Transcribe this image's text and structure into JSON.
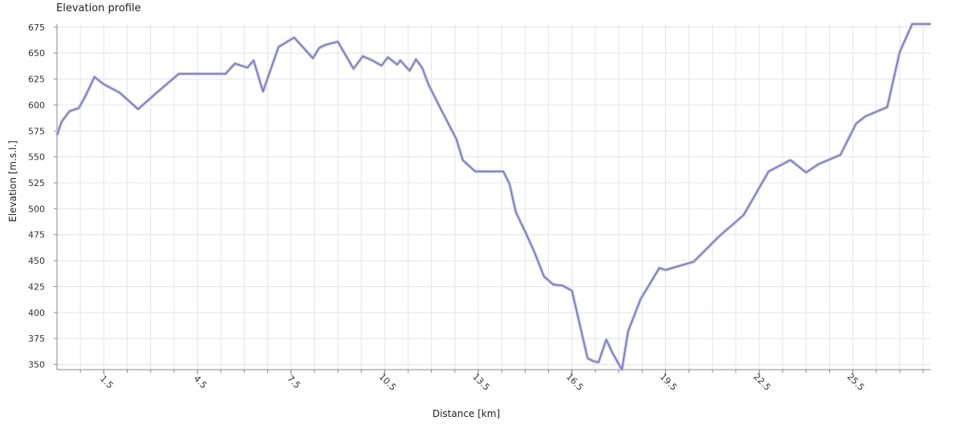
{
  "chart_data": {
    "type": "line",
    "title": "Elevation profile",
    "xlabel": "Distance [km]",
    "ylabel": "Elevation [m.s.l.]",
    "xlim": [
      0,
      28
    ],
    "ylim": [
      345,
      678
    ],
    "xticks": [
      1.5,
      4.5,
      7.5,
      10.5,
      13.5,
      16.5,
      19.5,
      22.5,
      25.5
    ],
    "yticks": [
      350,
      375,
      400,
      425,
      450,
      475,
      500,
      525,
      550,
      575,
      600,
      625,
      650,
      675
    ],
    "grid": true,
    "line_color": "#7b79b4",
    "series": [
      {
        "x": [
          0.0,
          0.15,
          0.4,
          0.7,
          0.9,
          1.2,
          1.5,
          2.0,
          2.6,
          3.2,
          3.9,
          4.2,
          4.6,
          5.4,
          5.7,
          6.1,
          6.3,
          6.6,
          7.1,
          7.6,
          7.9,
          8.2,
          8.4,
          8.6,
          9.0,
          9.5,
          9.8,
          10.1,
          10.4,
          10.6,
          10.9,
          11.0,
          11.3,
          11.5,
          11.7,
          11.9,
          12.3,
          12.8,
          13.0,
          13.4,
          14.3,
          14.5,
          14.7,
          15.0,
          15.3,
          15.6,
          15.9,
          16.2,
          16.5,
          16.7,
          17.0,
          17.2,
          17.35,
          17.6,
          17.8,
          18.1,
          18.3,
          18.7,
          19.3,
          19.5,
          20.4,
          21.2,
          22.0,
          22.8,
          23.5,
          24.0,
          24.4,
          25.1,
          25.6,
          25.9,
          26.6,
          27.0,
          27.4,
          28.0
        ],
        "y": [
          571,
          584,
          594,
          597,
          608,
          627,
          620,
          612,
          596,
          612,
          630,
          630,
          630,
          630,
          640,
          636,
          643,
          613,
          656,
          665,
          655,
          645,
          655,
          658,
          661,
          635,
          647,
          643,
          638,
          646,
          639,
          643,
          633,
          644,
          636,
          620,
          596,
          567,
          547,
          536,
          536,
          524,
          497,
          478,
          458,
          435,
          427,
          426,
          421,
          395,
          356,
          353,
          352,
          374,
          361,
          345,
          382,
          413,
          443,
          441,
          449,
          473,
          494,
          536,
          547,
          535,
          543,
          552,
          582,
          589,
          598,
          651,
          678,
          678
        ]
      }
    ]
  }
}
